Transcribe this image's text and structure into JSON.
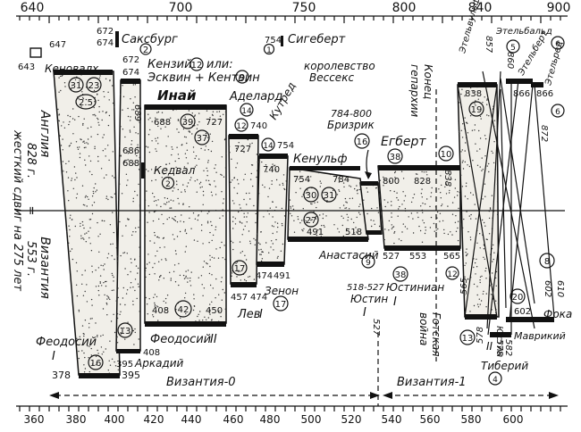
{
  "top_axis": {
    "ticks": [
      "640",
      "700",
      "750",
      "800",
      "840",
      "900"
    ]
  },
  "bottom_axis": {
    "ticks": [
      "360",
      "380",
      "400",
      "420",
      "440",
      "460",
      "480",
      "500",
      "520",
      "540",
      "560",
      "580",
      "600"
    ]
  },
  "side_labels": {
    "england": "Англия",
    "byzantium": "Византия",
    "sync_left": "жесткий сдвиг на 275 лет",
    "sync_a": "828 г.",
    "sync_b": "553 г.",
    "sync_eq": "="
  },
  "top_texts": {
    "sakhsburg": "Саксбург",
    "sakhsburg_num": "2",
    "years_672": "672",
    "years_674": "674",
    "sigebert": "Сигеберт",
    "sigebert_year": "754",
    "sigebert_num": "1",
    "kingdom1": "королевство",
    "kingdom2": "Вессекс",
    "kenzy": "Кензий",
    "kenzy_num": "12",
    "kenzy_or": "или:",
    "eskvin": "Эсквин + Кентвин",
    "eskvin_num": "9",
    "year_647": "647",
    "year_643": "643",
    "kenwalkh": "Кеновалх",
    "kenwalkh_a": "31",
    "kenwalkh_b": "23",
    "kenwalkh_c": "2.5",
    "year_672b": "672",
    "year_674b": "674",
    "year_689": "689",
    "year_686": "686",
    "year_688": "688",
    "inai": "Инай",
    "inai_a": "39",
    "inai_b": "37",
    "year_727": "727",
    "kedval": "Кедвал",
    "kedval_num": "2",
    "adelard": "Аделард",
    "adelard_num": "14",
    "year_740": "740",
    "kuthred": "Кутред",
    "kuthred_num": "12",
    "year_727b": "727",
    "year_740b": "740",
    "year_754": "754",
    "kuthred_num2": "14",
    "brizrik_years": "784-800",
    "brizrik": "Бризрик",
    "brizrik_num": "16",
    "kenulf": "Кенульф",
    "kenulf_y1": "754",
    "kenulf_y2": "784",
    "kenulf_a": "30",
    "kenulf_b": "31",
    "egbert": "Егберт",
    "egbert_num": "38",
    "egbert_y1": "800",
    "egbert_y2": "828",
    "egbert_y3": "838",
    "egbert_num2": "10",
    "end_heptarchy1": "Конец",
    "end_heptarchy2": "гепархии",
    "ethelwulf": "Этельвульф",
    "ethelwulf_num": "19",
    "ethelbald": "Этельбальд",
    "ethelbald_num": "5",
    "ethelbert": "Этельберт",
    "ethelbert_num": "6",
    "ethelred": "Этельред",
    "ethelred_num": "6",
    "year_838": "838",
    "year_857": "857",
    "year_860": "860",
    "year_866": "866",
    "year_866b": "866",
    "year_872": "872"
  },
  "bottom_texts": {
    "feodosy1": "Феодосий",
    "feodosy1_roman": "I",
    "feodosy1_num": "16",
    "year_378": "378",
    "year_395": "395",
    "arkady": "Аркадий",
    "year_395b": "395",
    "arkady_num": "13",
    "year_408": "408",
    "feodosy2": "Феодосий",
    "feodosy2_roman": "II",
    "feodosy2_num": "42",
    "year_408b": "408",
    "year_450": "450",
    "lev": "Лев",
    "lev_roman": "I",
    "lev_num": "17",
    "year_457": "457",
    "year_474": "474",
    "zenon": "Зенон",
    "zenon_num": "17",
    "year_474b": "474",
    "year_491": "491",
    "anastasy": "Анастасий",
    "anastasy_num": "27",
    "year_491b": "491",
    "year_518": "518",
    "justin": "Юстин",
    "justin_roman": "I",
    "justin_years": "518-527",
    "justin_num": "9",
    "justinian": "Юстиниан",
    "justinian_roman": "I",
    "justinian_num": "38",
    "year_527": "527",
    "year_553": "553",
    "year_565": "565",
    "justinian_num2": "12",
    "gothic1": "Готская",
    "gothic2": "война",
    "year_527c": "527",
    "justin2": "Юстин",
    "justin2_roman": "II",
    "justin2_num": "13",
    "year_565b": "565",
    "year_578": "578",
    "tiberius": "Тиберий",
    "tiberius_num": "4",
    "year_578b": "578",
    "year_582": "582",
    "mavriky": "Маврикий",
    "mavriky_num": "20",
    "year_602": "602",
    "foka": "Фока",
    "foka_num": "8",
    "year_602b": "602",
    "year_610": "610",
    "byz0": "Византия-0",
    "byz1": "Византия-1"
  }
}
